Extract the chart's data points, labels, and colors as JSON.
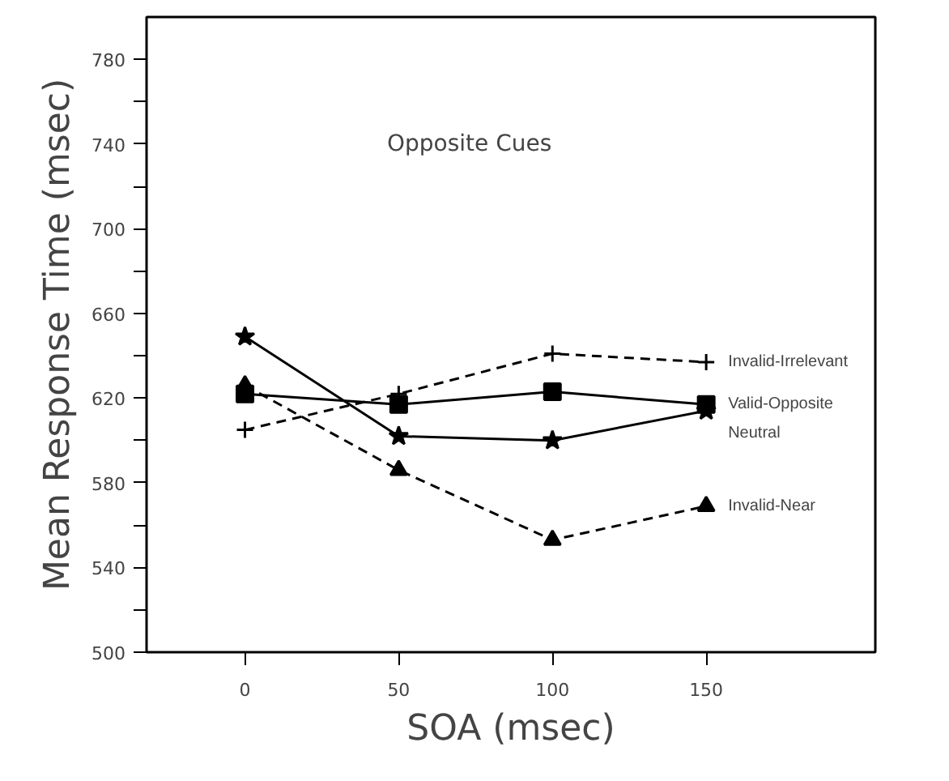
{
  "chart_data": {
    "type": "line",
    "xlabel": "SOA (msec)",
    "ylabel": "Mean Response Time (msec)",
    "annotations": [
      "Opposite Cues"
    ],
    "x": [
      0,
      50,
      100,
      150
    ],
    "series": [
      {
        "name": "Invalid-Irrelevant",
        "color": "#000000",
        "values": [
          605,
          622,
          641,
          637
        ],
        "marker": "cross",
        "line_style": "dashed"
      },
      {
        "name": "Valid-Opposite",
        "color": "#000000",
        "values": [
          622,
          617,
          623,
          617
        ],
        "marker": "square",
        "line_style": "solid"
      },
      {
        "name": "Neutral",
        "color": "#000000",
        "values": [
          649,
          602,
          600,
          614
        ],
        "marker": "star",
        "line_style": "solid"
      },
      {
        "name": "Invalid-Near",
        "color": "#000000",
        "values": [
          626,
          586,
          553,
          569
        ],
        "marker": "triangle",
        "line_style": "dashed"
      }
    ],
    "xlim": [
      -32,
      205
    ],
    "ylim": [
      500,
      800
    ],
    "xticks": [
      0,
      50,
      100,
      150
    ],
    "yticks": [
      500,
      {
        "value": 520,
        "label": null
      },
      540,
      {
        "value": 560,
        "label": null
      },
      580,
      {
        "value": 600,
        "label": null
      },
      620,
      {
        "value": 640,
        "label": null
      },
      660,
      {
        "value": 680,
        "label": null
      },
      700,
      {
        "value": 720,
        "label": null
      },
      740,
      {
        "value": 760,
        "label": null
      },
      780
    ],
    "grid": false,
    "legend": "right"
  }
}
